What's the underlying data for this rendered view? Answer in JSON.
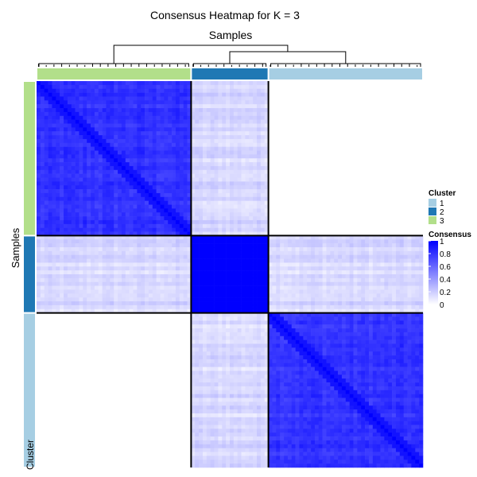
{
  "chart_data": {
    "type": "heatmap",
    "title": "Consensus Heatmap for K = 3",
    "column_label": "Samples",
    "row_label": "Samples",
    "annotation_label": "Cluster",
    "clusters": [
      {
        "name": "3",
        "color": "#b2df8a",
        "n_samples": 40
      },
      {
        "name": "2",
        "color": "#1f78b4",
        "n_samples": 20
      },
      {
        "name": "1",
        "color": "#a6cee3",
        "n_samples": 40
      }
    ],
    "block_consensus": [
      [
        0.8,
        0.15,
        0.0
      ],
      [
        0.15,
        1.0,
        0.15
      ],
      [
        0.0,
        0.15,
        0.8
      ]
    ],
    "legends": {
      "cluster": {
        "title": "Cluster",
        "entries": [
          {
            "label": "1",
            "color": "#a6cee3"
          },
          {
            "label": "2",
            "color": "#1f78b4"
          },
          {
            "label": "3",
            "color": "#b2df8a"
          }
        ]
      },
      "consensus": {
        "title": "Consensus",
        "low_color": "#ffffff",
        "high_color": "#0000ff",
        "ticks": [
          "1",
          "0.8",
          "0.6",
          "0.4",
          "0.2",
          "0"
        ],
        "range": [
          0,
          1
        ]
      }
    }
  }
}
